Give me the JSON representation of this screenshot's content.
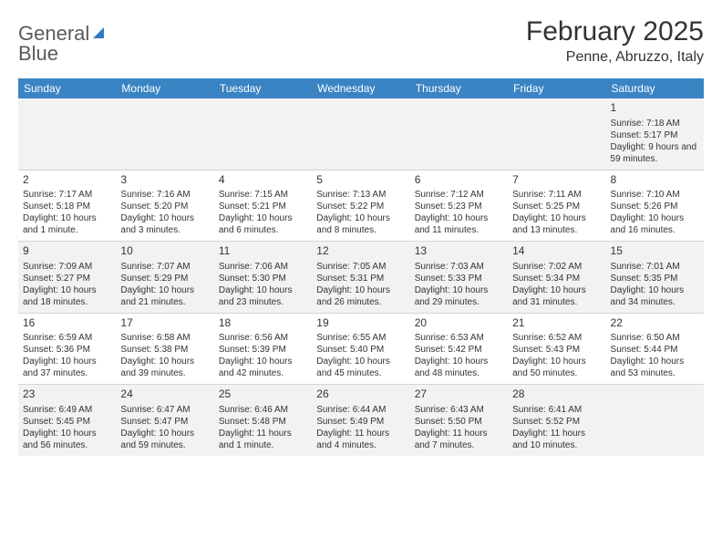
{
  "logo": {
    "line1": "General",
    "line2": "Blue"
  },
  "title": "February 2025",
  "location": "Penne, Abruzzo, Italy",
  "colors": {
    "header_bg": "#3a84c4",
    "header_text": "#ffffff",
    "row_alt_bg": "#f2f2f2",
    "text": "#333333",
    "logo_gray": "#5a5a5a",
    "logo_blue": "#2f7bbf"
  },
  "day_labels": [
    "Sunday",
    "Monday",
    "Tuesday",
    "Wednesday",
    "Thursday",
    "Friday",
    "Saturday"
  ],
  "weeks": [
    [
      null,
      null,
      null,
      null,
      null,
      null,
      {
        "n": "1",
        "sr": "Sunrise: 7:18 AM",
        "ss": "Sunset: 5:17 PM",
        "dl": "Daylight: 9 hours and 59 minutes."
      }
    ],
    [
      {
        "n": "2",
        "sr": "Sunrise: 7:17 AM",
        "ss": "Sunset: 5:18 PM",
        "dl": "Daylight: 10 hours and 1 minute."
      },
      {
        "n": "3",
        "sr": "Sunrise: 7:16 AM",
        "ss": "Sunset: 5:20 PM",
        "dl": "Daylight: 10 hours and 3 minutes."
      },
      {
        "n": "4",
        "sr": "Sunrise: 7:15 AM",
        "ss": "Sunset: 5:21 PM",
        "dl": "Daylight: 10 hours and 6 minutes."
      },
      {
        "n": "5",
        "sr": "Sunrise: 7:13 AM",
        "ss": "Sunset: 5:22 PM",
        "dl": "Daylight: 10 hours and 8 minutes."
      },
      {
        "n": "6",
        "sr": "Sunrise: 7:12 AM",
        "ss": "Sunset: 5:23 PM",
        "dl": "Daylight: 10 hours and 11 minutes."
      },
      {
        "n": "7",
        "sr": "Sunrise: 7:11 AM",
        "ss": "Sunset: 5:25 PM",
        "dl": "Daylight: 10 hours and 13 minutes."
      },
      {
        "n": "8",
        "sr": "Sunrise: 7:10 AM",
        "ss": "Sunset: 5:26 PM",
        "dl": "Daylight: 10 hours and 16 minutes."
      }
    ],
    [
      {
        "n": "9",
        "sr": "Sunrise: 7:09 AM",
        "ss": "Sunset: 5:27 PM",
        "dl": "Daylight: 10 hours and 18 minutes."
      },
      {
        "n": "10",
        "sr": "Sunrise: 7:07 AM",
        "ss": "Sunset: 5:29 PM",
        "dl": "Daylight: 10 hours and 21 minutes."
      },
      {
        "n": "11",
        "sr": "Sunrise: 7:06 AM",
        "ss": "Sunset: 5:30 PM",
        "dl": "Daylight: 10 hours and 23 minutes."
      },
      {
        "n": "12",
        "sr": "Sunrise: 7:05 AM",
        "ss": "Sunset: 5:31 PM",
        "dl": "Daylight: 10 hours and 26 minutes."
      },
      {
        "n": "13",
        "sr": "Sunrise: 7:03 AM",
        "ss": "Sunset: 5:33 PM",
        "dl": "Daylight: 10 hours and 29 minutes."
      },
      {
        "n": "14",
        "sr": "Sunrise: 7:02 AM",
        "ss": "Sunset: 5:34 PM",
        "dl": "Daylight: 10 hours and 31 minutes."
      },
      {
        "n": "15",
        "sr": "Sunrise: 7:01 AM",
        "ss": "Sunset: 5:35 PM",
        "dl": "Daylight: 10 hours and 34 minutes."
      }
    ],
    [
      {
        "n": "16",
        "sr": "Sunrise: 6:59 AM",
        "ss": "Sunset: 5:36 PM",
        "dl": "Daylight: 10 hours and 37 minutes."
      },
      {
        "n": "17",
        "sr": "Sunrise: 6:58 AM",
        "ss": "Sunset: 5:38 PM",
        "dl": "Daylight: 10 hours and 39 minutes."
      },
      {
        "n": "18",
        "sr": "Sunrise: 6:56 AM",
        "ss": "Sunset: 5:39 PM",
        "dl": "Daylight: 10 hours and 42 minutes."
      },
      {
        "n": "19",
        "sr": "Sunrise: 6:55 AM",
        "ss": "Sunset: 5:40 PM",
        "dl": "Daylight: 10 hours and 45 minutes."
      },
      {
        "n": "20",
        "sr": "Sunrise: 6:53 AM",
        "ss": "Sunset: 5:42 PM",
        "dl": "Daylight: 10 hours and 48 minutes."
      },
      {
        "n": "21",
        "sr": "Sunrise: 6:52 AM",
        "ss": "Sunset: 5:43 PM",
        "dl": "Daylight: 10 hours and 50 minutes."
      },
      {
        "n": "22",
        "sr": "Sunrise: 6:50 AM",
        "ss": "Sunset: 5:44 PM",
        "dl": "Daylight: 10 hours and 53 minutes."
      }
    ],
    [
      {
        "n": "23",
        "sr": "Sunrise: 6:49 AM",
        "ss": "Sunset: 5:45 PM",
        "dl": "Daylight: 10 hours and 56 minutes."
      },
      {
        "n": "24",
        "sr": "Sunrise: 6:47 AM",
        "ss": "Sunset: 5:47 PM",
        "dl": "Daylight: 10 hours and 59 minutes."
      },
      {
        "n": "25",
        "sr": "Sunrise: 6:46 AM",
        "ss": "Sunset: 5:48 PM",
        "dl": "Daylight: 11 hours and 1 minute."
      },
      {
        "n": "26",
        "sr": "Sunrise: 6:44 AM",
        "ss": "Sunset: 5:49 PM",
        "dl": "Daylight: 11 hours and 4 minutes."
      },
      {
        "n": "27",
        "sr": "Sunrise: 6:43 AM",
        "ss": "Sunset: 5:50 PM",
        "dl": "Daylight: 11 hours and 7 minutes."
      },
      {
        "n": "28",
        "sr": "Sunrise: 6:41 AM",
        "ss": "Sunset: 5:52 PM",
        "dl": "Daylight: 11 hours and 10 minutes."
      },
      null
    ]
  ]
}
